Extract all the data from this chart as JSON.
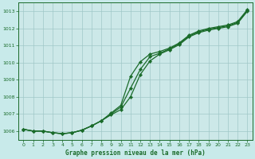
{
  "background_color": "#c8eaea",
  "plot_bg_color": "#cce8e8",
  "grid_color": "#a0c8c8",
  "line_color": "#1a6b2a",
  "marker_color": "#1a6b2a",
  "xlabel": "Graphe pression niveau de la mer (hPa)",
  "ylim": [
    1005.5,
    1013.5
  ],
  "yticks": [
    1006,
    1007,
    1008,
    1009,
    1010,
    1011,
    1012,
    1013
  ],
  "xlim": [
    -0.5,
    23.5
  ],
  "xticks": [
    0,
    1,
    2,
    3,
    4,
    5,
    6,
    7,
    8,
    9,
    10,
    11,
    12,
    13,
    14,
    15,
    16,
    17,
    18,
    19,
    20,
    21,
    22,
    23
  ],
  "series1": [
    1006.1,
    1006.0,
    1006.0,
    1005.9,
    1005.85,
    1005.9,
    1006.05,
    1006.3,
    1006.6,
    1006.95,
    1007.25,
    1008.0,
    1009.3,
    1010.1,
    1010.5,
    1010.75,
    1011.05,
    1011.5,
    1011.75,
    1011.9,
    1012.0,
    1012.1,
    1012.3,
    1013.0
  ],
  "series2": [
    1006.1,
    1006.0,
    1006.0,
    1005.9,
    1005.85,
    1005.9,
    1006.05,
    1006.3,
    1006.6,
    1007.0,
    1007.4,
    1008.5,
    1009.6,
    1010.35,
    1010.55,
    1010.8,
    1011.1,
    1011.55,
    1011.8,
    1011.95,
    1012.05,
    1012.15,
    1012.35,
    1013.05
  ],
  "series3": [
    1006.1,
    1006.0,
    1006.0,
    1005.9,
    1005.85,
    1005.9,
    1006.05,
    1006.3,
    1006.6,
    1007.05,
    1007.5,
    1009.2,
    1010.05,
    1010.5,
    1010.65,
    1010.85,
    1011.15,
    1011.6,
    1011.85,
    1012.0,
    1012.1,
    1012.2,
    1012.4,
    1013.1
  ]
}
